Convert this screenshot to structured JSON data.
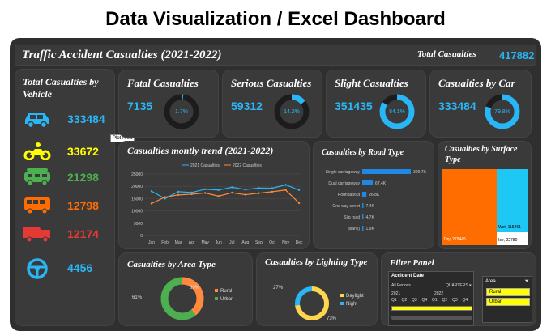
{
  "header": {
    "title": "Data Visualization / Excel Dashboard"
  },
  "banner": {
    "title": "Traffic Accident Casualties (2021-2022)",
    "total_label": "Total Casualties",
    "total_value": "417882"
  },
  "vehicle": {
    "title": "Total  Casualties by Vehicle",
    "items": [
      {
        "icon": "car-icon",
        "value": "333484",
        "color": "#29b6f6"
      },
      {
        "icon": "motorcycle-icon",
        "value": "33672",
        "color": "#ffff00"
      },
      {
        "icon": "bus-icon",
        "value": "21298",
        "color": "#4caf50"
      },
      {
        "icon": "van-icon",
        "value": "12798",
        "color": "#ff6d00"
      },
      {
        "icon": "truck-icon",
        "value": "12174",
        "color": "#e53935"
      },
      {
        "icon": "steering-wheel-icon",
        "value": "4456",
        "color": "#29b6f6"
      }
    ],
    "tooltip": "Plot Area"
  },
  "kpis": [
    {
      "title": "Fatal Casualties",
      "value": "7135",
      "pct": "1.7%",
      "fraction": 0.017
    },
    {
      "title": "Serious Casualties",
      "value": "59312",
      "pct": "14.2%",
      "fraction": 0.142
    },
    {
      "title": "Slight Casualties",
      "value": "351435",
      "pct": "84.1%",
      "fraction": 0.841
    },
    {
      "title": "Casualties by Car",
      "value": "333484",
      "pct": "79.8%",
      "fraction": 0.798
    }
  ],
  "trend": {
    "title": "Casualties montly trend (2021-2022)"
  },
  "road": {
    "title": "Casualties by Road Type"
  },
  "surface": {
    "title": "Casualties by Surface Type",
    "label_dry": "Dry, 279445",
    "label_wet": "Wet, 115261",
    "label_ice": "Ice, 22780"
  },
  "area": {
    "title": "Casualties by Area Type",
    "pct_rural": "39%",
    "pct_urban": "61%",
    "legend": [
      "Rural",
      "Urban"
    ]
  },
  "lighting": {
    "title": "Casualties by Lighting Type",
    "pct_day": "73%",
    "pct_night": "27%",
    "legend": [
      "Daylight",
      "Night"
    ]
  },
  "filter": {
    "title": "Filter Panel",
    "date_label": "Accident Date",
    "periods": "All Periods",
    "quarters": "QUARTERS",
    "y2021": "2021",
    "y2022": "2022",
    "qs": [
      "Q1",
      "Q2",
      "Q3",
      "Q4",
      "Q1",
      "Q2",
      "Q3",
      "Q4"
    ],
    "area_label": "Area",
    "area_items": [
      "Rural",
      "Urban"
    ]
  },
  "chart_data": [
    {
      "type": "line",
      "title": "Casualties montly trend (2021-2022)",
      "categories": [
        "Jan",
        "Feb",
        "Mar",
        "Apr",
        "May",
        "Jun",
        "Jul",
        "Aug",
        "Sep",
        "Oct",
        "Nov",
        "Dec"
      ],
      "ylim": [
        0,
        25000
      ],
      "yticks": [
        0,
        5000,
        10000,
        15000,
        20000,
        25000
      ],
      "series": [
        {
          "name": "2021 Casualties",
          "color": "#29b6f6",
          "values": [
            18000,
            15000,
            17800,
            17500,
            18800,
            18500,
            19600,
            18700,
            19300,
            19200,
            20600,
            18500
          ]
        },
        {
          "name": "2022 Casualties",
          "color": "#ff8a3d",
          "values": [
            13000,
            15600,
            16500,
            16800,
            17300,
            16000,
            17400,
            16600,
            17200,
            17800,
            18500,
            13200
          ]
        }
      ]
    },
    {
      "type": "bar",
      "title": "Casualties by Road Type",
      "categories": [
        "Single carriageway",
        "Dual carriageway",
        "Roundabout",
        "One way street",
        "Slip road",
        "(blank)"
      ],
      "values": [
        309.7,
        67.4,
        26.8,
        7.4,
        4.7,
        1.9
      ],
      "labels": [
        "309.7K",
        "67.4K",
        "26.8K",
        "7.4K",
        "4.7K",
        "1.9K"
      ]
    },
    {
      "type": "heatmap",
      "title": "Casualties by Surface Type",
      "categories": [
        "Dry",
        "Wet",
        "Ice"
      ],
      "values": [
        279445,
        115261,
        22780
      ]
    },
    {
      "type": "pie",
      "title": "Casualties by Area Type",
      "categories": [
        "Rural",
        "Urban"
      ],
      "values": [
        39,
        61
      ]
    },
    {
      "type": "pie",
      "title": "Casualties by Lighting Type",
      "categories": [
        "Daylight",
        "Night"
      ],
      "values": [
        73,
        27
      ]
    }
  ]
}
